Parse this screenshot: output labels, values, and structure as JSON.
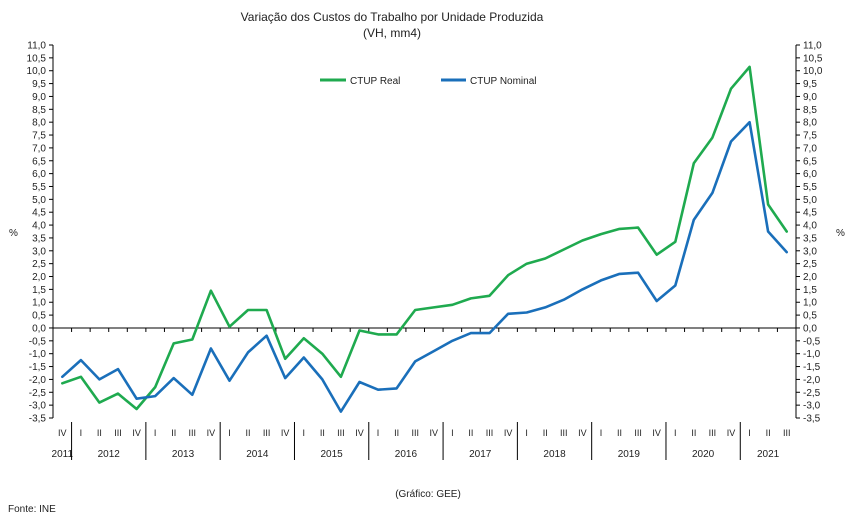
{
  "chart_data": {
    "type": "line",
    "title": "Variação dos Custos do Trabalho por Unidade Produzida",
    "subtitle": "(VH, mm4)",
    "ylabel": "%",
    "ylim": [
      -3.5,
      11.0
    ],
    "ytick_step": 0.5,
    "yticks": [
      "11,0",
      "10,5",
      "10,0",
      "9,5",
      "9,0",
      "8,5",
      "8,0",
      "7,5",
      "7,0",
      "6,5",
      "6,0",
      "5,5",
      "5,0",
      "4,5",
      "4,0",
      "3,5",
      "3,0",
      "2,5",
      "2,0",
      "1,5",
      "1,0",
      "0,5",
      "0,0",
      "-0,5",
      "-1,0",
      "-1,5",
      "-2,0",
      "-2,5",
      "-3,0",
      "-3,5"
    ],
    "grid": false,
    "legend_position": "top",
    "x": [
      "2011 IV",
      "2012 I",
      "2012 II",
      "2012 III",
      "2012 IV",
      "2013 I",
      "2013 II",
      "2013 III",
      "2013 IV",
      "2014 I",
      "2014 II",
      "2014 III",
      "2014 IV",
      "2015 I",
      "2015 II",
      "2015 III",
      "2015 IV",
      "2016 I",
      "2016 II",
      "2016 III",
      "2016 IV",
      "2017 I",
      "2017 II",
      "2017 III",
      "2017 IV",
      "2018 I",
      "2018 II",
      "2018 III",
      "2018 IV",
      "2019 I",
      "2019 II",
      "2019 III",
      "2019 IV",
      "2020 I",
      "2020 II",
      "2020 III",
      "2020 IV",
      "2021 I",
      "2021 II",
      "2021 III"
    ],
    "quarter_labels": [
      "IV",
      "I",
      "II",
      "III",
      "IV",
      "I",
      "II",
      "III",
      "IV",
      "I",
      "II",
      "III",
      "IV",
      "I",
      "II",
      "III",
      "IV",
      "I",
      "II",
      "III",
      "IV",
      "I",
      "II",
      "III",
      "IV",
      "I",
      "II",
      "III",
      "IV",
      "I",
      "II",
      "III",
      "IV",
      "I",
      "II",
      "III",
      "IV",
      "I",
      "II",
      "III"
    ],
    "years": [
      {
        "label": "2011",
        "start": 0,
        "count": 1
      },
      {
        "label": "2012",
        "start": 1,
        "count": 4
      },
      {
        "label": "2013",
        "start": 5,
        "count": 4
      },
      {
        "label": "2014",
        "start": 9,
        "count": 4
      },
      {
        "label": "2015",
        "start": 13,
        "count": 4
      },
      {
        "label": "2016",
        "start": 17,
        "count": 4
      },
      {
        "label": "2017",
        "start": 21,
        "count": 4
      },
      {
        "label": "2018",
        "start": 25,
        "count": 4
      },
      {
        "label": "2019",
        "start": 29,
        "count": 4
      },
      {
        "label": "2020",
        "start": 33,
        "count": 4
      },
      {
        "label": "2021",
        "start": 37,
        "count": 3
      }
    ],
    "series": [
      {
        "name": "CTUP Real",
        "color": "#1faa4f",
        "values": [
          -2.15,
          -1.9,
          -2.9,
          -2.55,
          -3.15,
          -2.3,
          -0.6,
          -0.45,
          1.45,
          0.05,
          0.7,
          0.7,
          -1.2,
          -0.4,
          -1.0,
          -1.9,
          -0.1,
          -0.25,
          -0.25,
          0.7,
          0.8,
          0.9,
          1.15,
          1.25,
          2.05,
          2.5,
          2.7,
          3.05,
          3.4,
          3.65,
          3.85,
          3.9,
          2.85,
          3.35,
          6.4,
          7.4,
          9.3,
          10.15,
          4.8,
          3.75
        ]
      },
      {
        "name": "CTUP Nominal",
        "color": "#1a6fba",
        "values": [
          -1.9,
          -1.25,
          -2.0,
          -1.6,
          -2.75,
          -2.65,
          -1.95,
          -2.6,
          -0.8,
          -2.05,
          -0.95,
          -0.3,
          -1.95,
          -1.15,
          -2.0,
          -3.25,
          -2.1,
          -2.4,
          -2.35,
          -1.3,
          -0.9,
          -0.5,
          -0.2,
          -0.2,
          0.55,
          0.6,
          0.8,
          1.1,
          1.5,
          1.85,
          2.1,
          2.15,
          1.05,
          1.65,
          4.2,
          5.25,
          7.25,
          8.0,
          3.75,
          2.95
        ]
      }
    ]
  },
  "footer": {
    "source": "Fonte: INE",
    "credit": "(Gráfico: GEE)"
  }
}
